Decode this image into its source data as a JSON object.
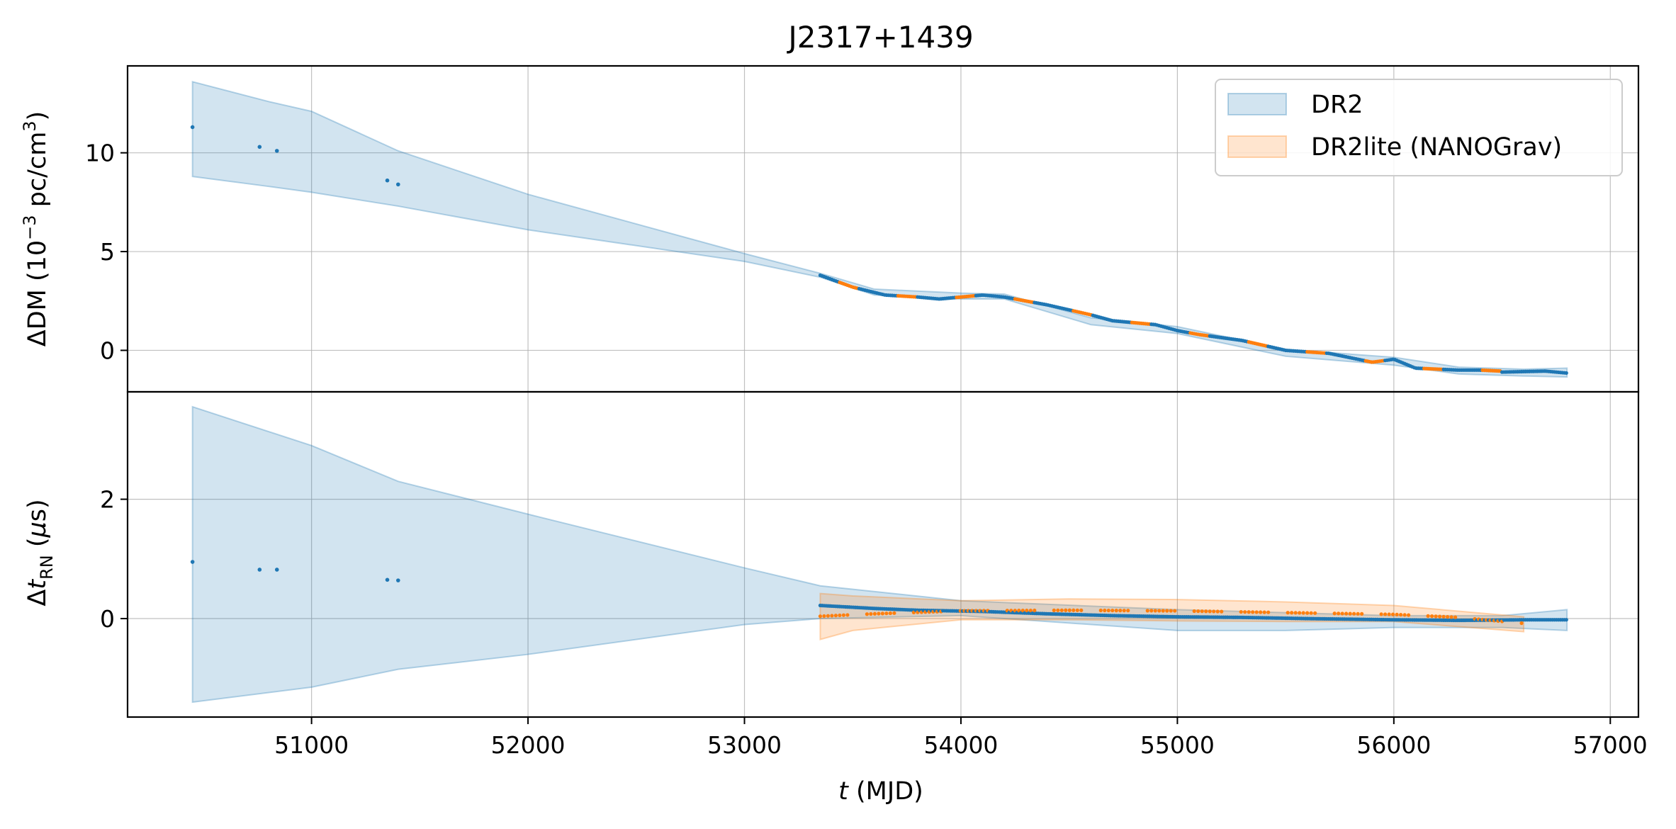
{
  "chart_data": {
    "type": "scatter",
    "title": "J2317+1439",
    "xlabel": {
      "italic": "t",
      "rest": " (MJD)"
    },
    "xlim": [
      50150,
      57130
    ],
    "xticks": [
      "51000",
      "52000",
      "53000",
      "54000",
      "55000",
      "56000",
      "57000"
    ],
    "legend": {
      "placement": "top-right",
      "entries": [
        {
          "label": "DR2",
          "color": "#1f77b4"
        },
        {
          "label": "DR2lite (NANOGrav)",
          "color": "#ff7f0e"
        }
      ]
    },
    "grid": true,
    "panels": [
      {
        "id": "dm",
        "ylabel": {
          "prefix": "ΔDM (10",
          "sup1": "−3",
          "mid": " pc/cm",
          "sup2": "3",
          "suffix": ")"
        },
        "ylim": [
          -2.1,
          14.4
        ],
        "yticks": [
          "0",
          "5",
          "10"
        ],
        "series": [
          {
            "name": "DR2",
            "color": "#1f77b4",
            "band": [
              [
                50450,
                8.8,
                13.6
              ],
              [
                50800,
                8.3,
                12.6
              ],
              [
                51000,
                8.0,
                12.1
              ],
              [
                51400,
                7.3,
                10.1
              ],
              [
                52000,
                6.1,
                7.9
              ],
              [
                53000,
                4.5,
                4.9
              ],
              [
                53350,
                3.7,
                3.9
              ],
              [
                53600,
                2.8,
                3.1
              ],
              [
                54000,
                2.6,
                2.9
              ],
              [
                54200,
                2.6,
                2.85
              ],
              [
                54600,
                1.3,
                1.65
              ],
              [
                55000,
                0.85,
                1.2
              ],
              [
                55500,
                -0.3,
                0.05
              ],
              [
                56000,
                -0.75,
                -0.35
              ],
              [
                56300,
                -1.2,
                -0.85
              ],
              [
                56600,
                -1.3,
                -0.95
              ],
              [
                56800,
                -1.35,
                -0.9
              ]
            ],
            "curve": [
              [
                53350,
                3.8
              ],
              [
                53500,
                3.2
              ],
              [
                53650,
                2.8
              ],
              [
                53800,
                2.7
              ],
              [
                53900,
                2.6
              ],
              [
                54000,
                2.7
              ],
              [
                54100,
                2.8
              ],
              [
                54200,
                2.7
              ],
              [
                54400,
                2.3
              ],
              [
                54600,
                1.8
              ],
              [
                54700,
                1.5
              ],
              [
                54900,
                1.3
              ],
              [
                55000,
                1.0
              ],
              [
                55100,
                0.8
              ],
              [
                55300,
                0.5
              ],
              [
                55500,
                0.0
              ],
              [
                55700,
                -0.15
              ],
              [
                55900,
                -0.6
              ],
              [
                56000,
                -0.45
              ],
              [
                56100,
                -0.9
              ],
              [
                56300,
                -1.0
              ],
              [
                56400,
                -1.0
              ],
              [
                56500,
                -1.1
              ],
              [
                56700,
                -1.05
              ],
              [
                56800,
                -1.15
              ]
            ],
            "points": [
              [
                50450,
                11.3
              ],
              [
                50760,
                10.3
              ],
              [
                50840,
                10.1
              ],
              [
                51350,
                8.6
              ],
              [
                51400,
                8.4
              ]
            ]
          },
          {
            "name": "DR2lite (NANOGrav)",
            "color": "#ff7f0e",
            "curve": [
              [
                53350,
                3.8
              ],
              [
                53500,
                3.2
              ],
              [
                53650,
                2.8
              ],
              [
                53800,
                2.7
              ],
              [
                53900,
                2.6
              ],
              [
                54000,
                2.7
              ],
              [
                54100,
                2.8
              ],
              [
                54200,
                2.7
              ],
              [
                54400,
                2.3
              ],
              [
                54600,
                1.8
              ],
              [
                54700,
                1.5
              ],
              [
                54900,
                1.3
              ],
              [
                55000,
                1.0
              ],
              [
                55100,
                0.8
              ],
              [
                55300,
                0.5
              ],
              [
                55500,
                0.0
              ],
              [
                55700,
                -0.15
              ],
              [
                55900,
                -0.6
              ],
              [
                56000,
                -0.45
              ],
              [
                56100,
                -0.9
              ],
              [
                56300,
                -1.0
              ],
              [
                56400,
                -1.0
              ],
              [
                56600,
                -1.1
              ]
            ],
            "curve_range": [
              53350,
              56600
            ],
            "points": []
          }
        ]
      },
      {
        "id": "rn",
        "ylabel": {
          "prefix": "Δ",
          "italic": "t",
          "sub": "RN",
          "mid": " (",
          "greek": "μ",
          "suffix": "s)"
        },
        "ylim": [
          -1.65,
          3.8
        ],
        "yticks": [
          "0",
          "2"
        ],
        "series": [
          {
            "name": "DR2",
            "color": "#1f77b4",
            "band": [
              [
                50450,
                -1.4,
                3.55
              ],
              [
                51000,
                -1.15,
                2.9
              ],
              [
                51400,
                -0.85,
                2.3
              ],
              [
                52000,
                -0.6,
                1.75
              ],
              [
                53000,
                -0.1,
                0.85
              ],
              [
                53350,
                0.0,
                0.55
              ],
              [
                54000,
                0.05,
                0.3
              ],
              [
                55000,
                -0.2,
                0.15
              ],
              [
                55500,
                -0.2,
                0.1
              ],
              [
                56000,
                -0.15,
                0.05
              ],
              [
                56500,
                -0.15,
                0.05
              ],
              [
                56800,
                -0.2,
                0.15
              ]
            ],
            "curve": [
              [
                53350,
                0.22
              ],
              [
                53600,
                0.17
              ],
              [
                53800,
                0.14
              ],
              [
                54100,
                0.12
              ],
              [
                54400,
                0.08
              ],
              [
                54700,
                0.05
              ],
              [
                55000,
                0.03
              ],
              [
                55300,
                0.02
              ],
              [
                55600,
                0.0
              ],
              [
                56000,
                -0.02
              ],
              [
                56300,
                -0.03
              ],
              [
                56600,
                -0.02
              ],
              [
                56800,
                -0.02
              ]
            ],
            "points": [
              [
                50450,
                0.95
              ],
              [
                50760,
                0.82
              ],
              [
                50840,
                0.82
              ],
              [
                51350,
                0.65
              ],
              [
                51400,
                0.64
              ]
            ]
          },
          {
            "name": "DR2lite (NANOGrav)",
            "color": "#ff7f0e",
            "band": [
              [
                53350,
                -0.35,
                0.42
              ],
              [
                53500,
                -0.2,
                0.38
              ],
              [
                54000,
                -0.02,
                0.3
              ],
              [
                54500,
                -0.02,
                0.33
              ],
              [
                55000,
                -0.04,
                0.32
              ],
              [
                55500,
                -0.05,
                0.28
              ],
              [
                56000,
                -0.05,
                0.22
              ],
              [
                56600,
                -0.22,
                0.03
              ]
            ],
            "curve": [
              [
                53350,
                0.04
              ],
              [
                53600,
                0.08
              ],
              [
                54000,
                0.13
              ],
              [
                54500,
                0.14
              ],
              [
                55000,
                0.13
              ],
              [
                55500,
                0.1
              ],
              [
                56000,
                0.07
              ],
              [
                56300,
                0.02
              ],
              [
                56600,
                -0.08
              ]
            ],
            "curve_range": [
              53350,
              56600
            ],
            "points": []
          }
        ]
      }
    ]
  }
}
